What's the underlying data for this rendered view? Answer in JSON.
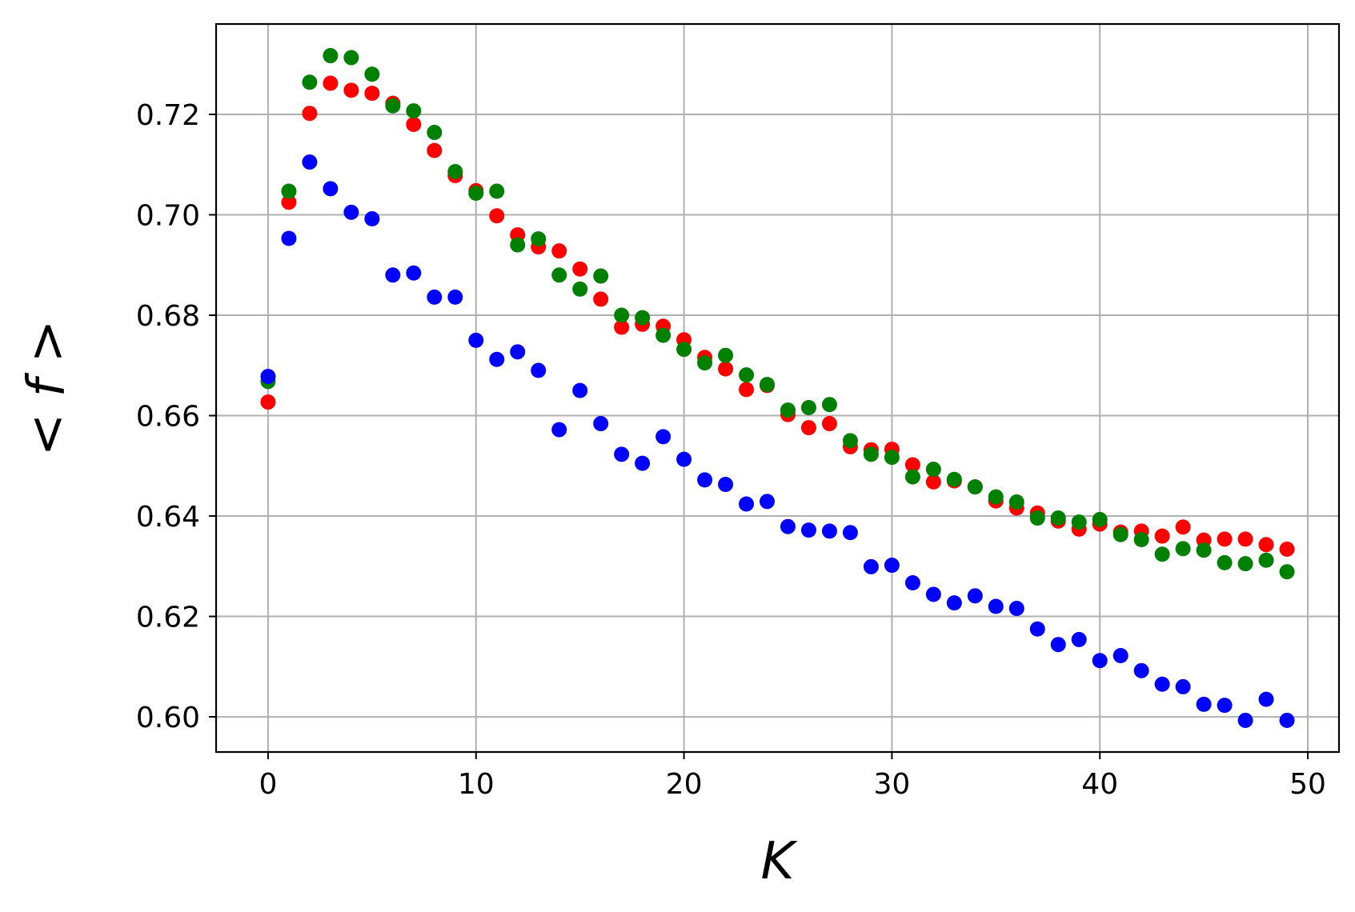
{
  "chart_data": {
    "type": "scatter",
    "xlabel": "K",
    "ylabel": "< f >",
    "xlim": [
      -2.5,
      51.5
    ],
    "ylim": [
      0.593,
      0.738
    ],
    "xticks": [
      0,
      10,
      20,
      30,
      40,
      50
    ],
    "yticks": [
      0.6,
      0.62,
      0.64,
      0.66,
      0.68,
      0.7,
      0.72
    ],
    "xtick_labels": [
      "0",
      "10",
      "20",
      "30",
      "40",
      "50"
    ],
    "ytick_labels": [
      "0.60",
      "0.62",
      "0.64",
      "0.66",
      "0.68",
      "0.70",
      "0.72"
    ],
    "grid": true,
    "x": [
      0,
      1,
      2,
      3,
      4,
      5,
      6,
      7,
      8,
      9,
      10,
      11,
      12,
      13,
      14,
      15,
      16,
      17,
      18,
      19,
      20,
      21,
      22,
      23,
      24,
      25,
      26,
      27,
      28,
      29,
      30,
      31,
      32,
      33,
      34,
      35,
      36,
      37,
      38,
      39,
      40,
      41,
      42,
      43,
      44,
      45,
      46,
      47,
      48,
      49
    ],
    "series": [
      {
        "color": "#ff0000",
        "values": [
          0.6627,
          0.7025,
          0.7202,
          0.7262,
          0.7248,
          0.7242,
          0.7222,
          0.718,
          0.7128,
          0.7078,
          0.7048,
          0.6998,
          0.696,
          0.6936,
          0.6928,
          0.6892,
          0.6832,
          0.6776,
          0.6782,
          0.6778,
          0.6751,
          0.6716,
          0.6693,
          0.6652,
          0.666,
          0.6602,
          0.6576,
          0.6584,
          0.6538,
          0.6532,
          0.6533,
          0.6502,
          0.6468,
          0.647,
          0.6458,
          0.643,
          0.6416,
          0.6406,
          0.639,
          0.6374,
          0.6384,
          0.6368,
          0.637,
          0.636,
          0.6378,
          0.6352,
          0.6354,
          0.6354,
          0.6343,
          0.6334
        ]
      },
      {
        "color": "#008000",
        "values": [
          0.6668,
          0.7047,
          0.7264,
          0.7317,
          0.7313,
          0.728,
          0.7217,
          0.7207,
          0.7164,
          0.7086,
          0.7043,
          0.7047,
          0.694,
          0.6952,
          0.688,
          0.6852,
          0.6878,
          0.68,
          0.6795,
          0.676,
          0.6732,
          0.6705,
          0.672,
          0.6681,
          0.6662,
          0.6611,
          0.6616,
          0.6622,
          0.655,
          0.6523,
          0.6517,
          0.6478,
          0.6493,
          0.6473,
          0.6458,
          0.6438,
          0.6428,
          0.6396,
          0.6396,
          0.6388,
          0.6393,
          0.6363,
          0.6353,
          0.6324,
          0.6335,
          0.6332,
          0.6307,
          0.6305,
          0.6312,
          0.6289
        ]
      },
      {
        "color": "#0000ff",
        "values": [
          0.6678,
          0.6953,
          0.7105,
          0.7052,
          0.7005,
          0.6992,
          0.688,
          0.6884,
          0.6836,
          0.6836,
          0.675,
          0.6712,
          0.6727,
          0.669,
          0.6572,
          0.665,
          0.6584,
          0.6523,
          0.6505,
          0.6558,
          0.6513,
          0.6472,
          0.6463,
          0.6424,
          0.6429,
          0.6379,
          0.6372,
          0.637,
          0.6367,
          0.6299,
          0.6302,
          0.6267,
          0.6244,
          0.6227,
          0.6241,
          0.622,
          0.6216,
          0.6175,
          0.6144,
          0.6154,
          0.6112,
          0.6122,
          0.6092,
          0.6065,
          0.606,
          0.6025,
          0.6023,
          0.5993,
          0.6035,
          0.5993
        ]
      }
    ]
  }
}
